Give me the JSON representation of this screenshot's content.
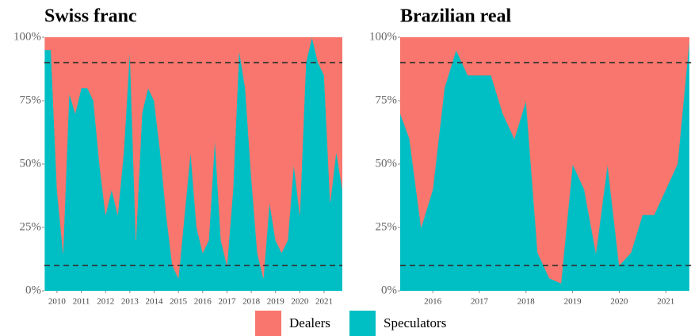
{
  "chart_data": [
    {
      "type": "area",
      "stacked": true,
      "title": "Swiss franc",
      "x": [
        2009.5,
        2009.75,
        2010,
        2010.25,
        2010.5,
        2010.75,
        2011,
        2011.25,
        2011.5,
        2011.75,
        2012,
        2012.25,
        2012.5,
        2012.75,
        2013,
        2013.25,
        2013.5,
        2013.75,
        2014,
        2014.25,
        2014.5,
        2014.75,
        2015,
        2015.25,
        2015.5,
        2015.75,
        2016,
        2016.25,
        2016.5,
        2016.75,
        2017,
        2017.25,
        2017.5,
        2017.75,
        2018,
        2018.25,
        2018.5,
        2018.75,
        2019,
        2019.25,
        2019.5,
        2019.75,
        2020,
        2020.25,
        2020.5,
        2020.75,
        2021,
        2021.25,
        2021.5,
        2021.75
      ],
      "series": [
        {
          "name": "Speculators",
          "color": "#00BFC4",
          "values": [
            95,
            95,
            40,
            15,
            78,
            70,
            80,
            80,
            75,
            50,
            30,
            40,
            30,
            55,
            95,
            20,
            70,
            80,
            75,
            55,
            30,
            10,
            5,
            30,
            55,
            25,
            15,
            20,
            60,
            20,
            10,
            40,
            95,
            80,
            45,
            15,
            5,
            35,
            20,
            15,
            20,
            50,
            30,
            90,
            100,
            90,
            85,
            35,
            55,
            40
          ]
        },
        {
          "name": "Dealers",
          "color": "#F8766D",
          "values": [
            5,
            5,
            60,
            85,
            22,
            30,
            20,
            20,
            25,
            50,
            70,
            60,
            70,
            45,
            5,
            80,
            30,
            20,
            25,
            45,
            70,
            90,
            95,
            70,
            45,
            75,
            85,
            80,
            40,
            80,
            90,
            60,
            5,
            20,
            55,
            85,
            95,
            65,
            80,
            85,
            80,
            50,
            70,
            10,
            0,
            10,
            15,
            65,
            45,
            60
          ]
        }
      ],
      "xlim": [
        2009.48,
        2021.75
      ],
      "xticks": [
        2010,
        2011,
        2012,
        2013,
        2014,
        2015,
        2016,
        2017,
        2018,
        2019,
        2020,
        2021
      ],
      "ylim": [
        0,
        100
      ],
      "yticks": [
        {
          "value": 0,
          "label": "0%"
        },
        {
          "value": 25,
          "label": "25%"
        },
        {
          "value": 50,
          "label": "50%"
        },
        {
          "value": 75,
          "label": "75%"
        },
        {
          "value": 100,
          "label": "100%"
        }
      ],
      "hlines": [
        10,
        90
      ]
    },
    {
      "type": "area",
      "stacked": true,
      "title": "Brazilian real",
      "x": [
        2015.3,
        2015.5,
        2015.75,
        2016,
        2016.25,
        2016.5,
        2016.75,
        2017,
        2017.25,
        2017.5,
        2017.75,
        2018,
        2018.25,
        2018.5,
        2018.75,
        2019,
        2019.25,
        2019.5,
        2019.75,
        2020,
        2020.25,
        2020.5,
        2020.75,
        2021,
        2021.25,
        2021.5
      ],
      "series": [
        {
          "name": "Speculators",
          "color": "#00BFC4",
          "values": [
            70,
            60,
            25,
            40,
            80,
            95,
            85,
            85,
            85,
            70,
            60,
            75,
            15,
            5,
            3,
            50,
            40,
            15,
            50,
            10,
            15,
            30,
            30,
            40,
            50,
            98
          ]
        },
        {
          "name": "Dealers",
          "color": "#F8766D",
          "values": [
            30,
            40,
            75,
            60,
            20,
            5,
            15,
            15,
            15,
            30,
            40,
            25,
            85,
            95,
            97,
            50,
            60,
            85,
            50,
            90,
            85,
            70,
            70,
            60,
            50,
            2
          ]
        }
      ],
      "xlim": [
        2015.3,
        2021.54
      ],
      "xticks": [
        2016,
        2017,
        2018,
        2019,
        2020,
        2021
      ],
      "ylim": [
        0,
        100
      ],
      "yticks": [
        {
          "value": 0,
          "label": "0%"
        },
        {
          "value": 25,
          "label": "25%"
        },
        {
          "value": 50,
          "label": "50%"
        },
        {
          "value": 75,
          "label": "75%"
        },
        {
          "value": 100,
          "label": "100%"
        }
      ],
      "hlines": [
        10,
        90
      ]
    }
  ]
}
